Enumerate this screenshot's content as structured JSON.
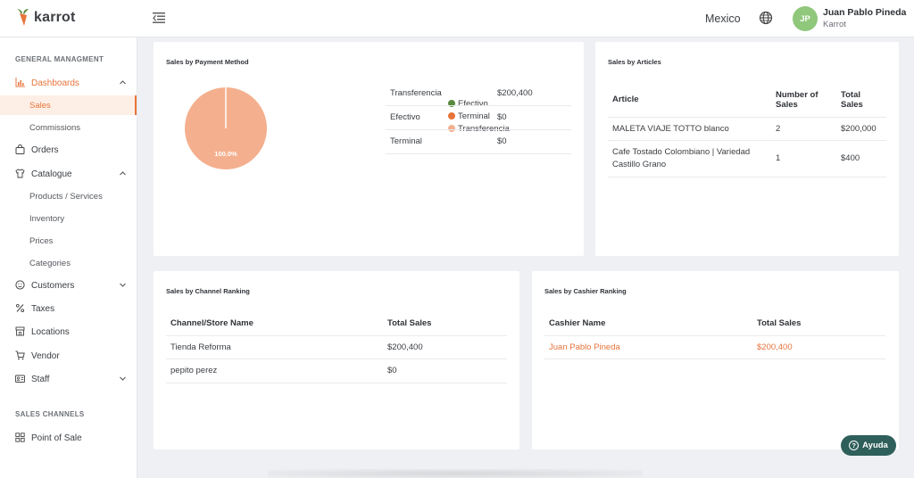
{
  "app": {
    "name": "karrot"
  },
  "header": {
    "country": "Mexico",
    "user": {
      "initials": "JP",
      "name": "Juan Pablo Pineda",
      "org": "Karrot"
    }
  },
  "sidebar": {
    "section_general": "GENERAL MANAGMENT",
    "dashboards": "Dashboards",
    "sales": "Sales",
    "commissions": "Commissions",
    "orders": "Orders",
    "catalogue": "Catalogue",
    "products_services": "Products / Services",
    "inventory": "Inventory",
    "prices": "Prices",
    "categories": "Categories",
    "customers": "Customers",
    "taxes": "Taxes",
    "locations": "Locations",
    "vendor": "Vendor",
    "staff": "Staff",
    "section_channels": "SALES CHANNELS",
    "point_of_sale": "Point of Sale"
  },
  "payment_card": {
    "title": "Sales by Payment Method",
    "legend": [
      {
        "label": "Efectivo",
        "color": "#5a8a3c"
      },
      {
        "label": "Terminal",
        "color": "#e8743b"
      },
      {
        "label": "Transferencia",
        "color": "#f4b08e"
      }
    ],
    "pie_label": "100.0%",
    "rows": [
      {
        "method": "Transferencia",
        "amount": "$200,400"
      },
      {
        "method": "Efectivo",
        "amount": "$0"
      },
      {
        "method": "Terminal",
        "amount": "$0"
      }
    ]
  },
  "chart_data": {
    "type": "pie",
    "categories": [
      "Efectivo",
      "Terminal",
      "Transferencia"
    ],
    "values": [
      0,
      0,
      100.0
    ],
    "data_labels": [
      "",
      "",
      "100.0%"
    ],
    "legend_position": "right"
  },
  "articles_card": {
    "title": "Sales by Articles",
    "headers": {
      "article": "Article",
      "num_sales_1": "Number of",
      "num_sales_2": "Sales",
      "total_1": "Total",
      "total_2": "Sales"
    },
    "rows": [
      {
        "article_1": "MALETA VIAJE TOTTO blanco",
        "article_2": "",
        "count": "2",
        "total": "$200,000"
      },
      {
        "article_1": "Cafe Tostado Colombiano | Variedad",
        "article_2": "Castillo Grano",
        "count": "1",
        "total": "$400"
      }
    ]
  },
  "channel_card": {
    "title": "Sales by Channel Ranking",
    "headers": {
      "name": "Channel/Store Name",
      "total": "Total Sales"
    },
    "rows": [
      {
        "name": "Tienda Reforma",
        "total": "$200,400"
      },
      {
        "name": "pepito perez",
        "total": "$0"
      }
    ]
  },
  "cashier_card": {
    "title": "Sales by Cashier Ranking",
    "headers": {
      "name": "Cashier Name",
      "total": "Total Sales"
    },
    "rows": [
      {
        "name": "Juan Pablo Pineda",
        "total": "$200,400"
      }
    ]
  },
  "help": {
    "label": "Ayuda"
  }
}
